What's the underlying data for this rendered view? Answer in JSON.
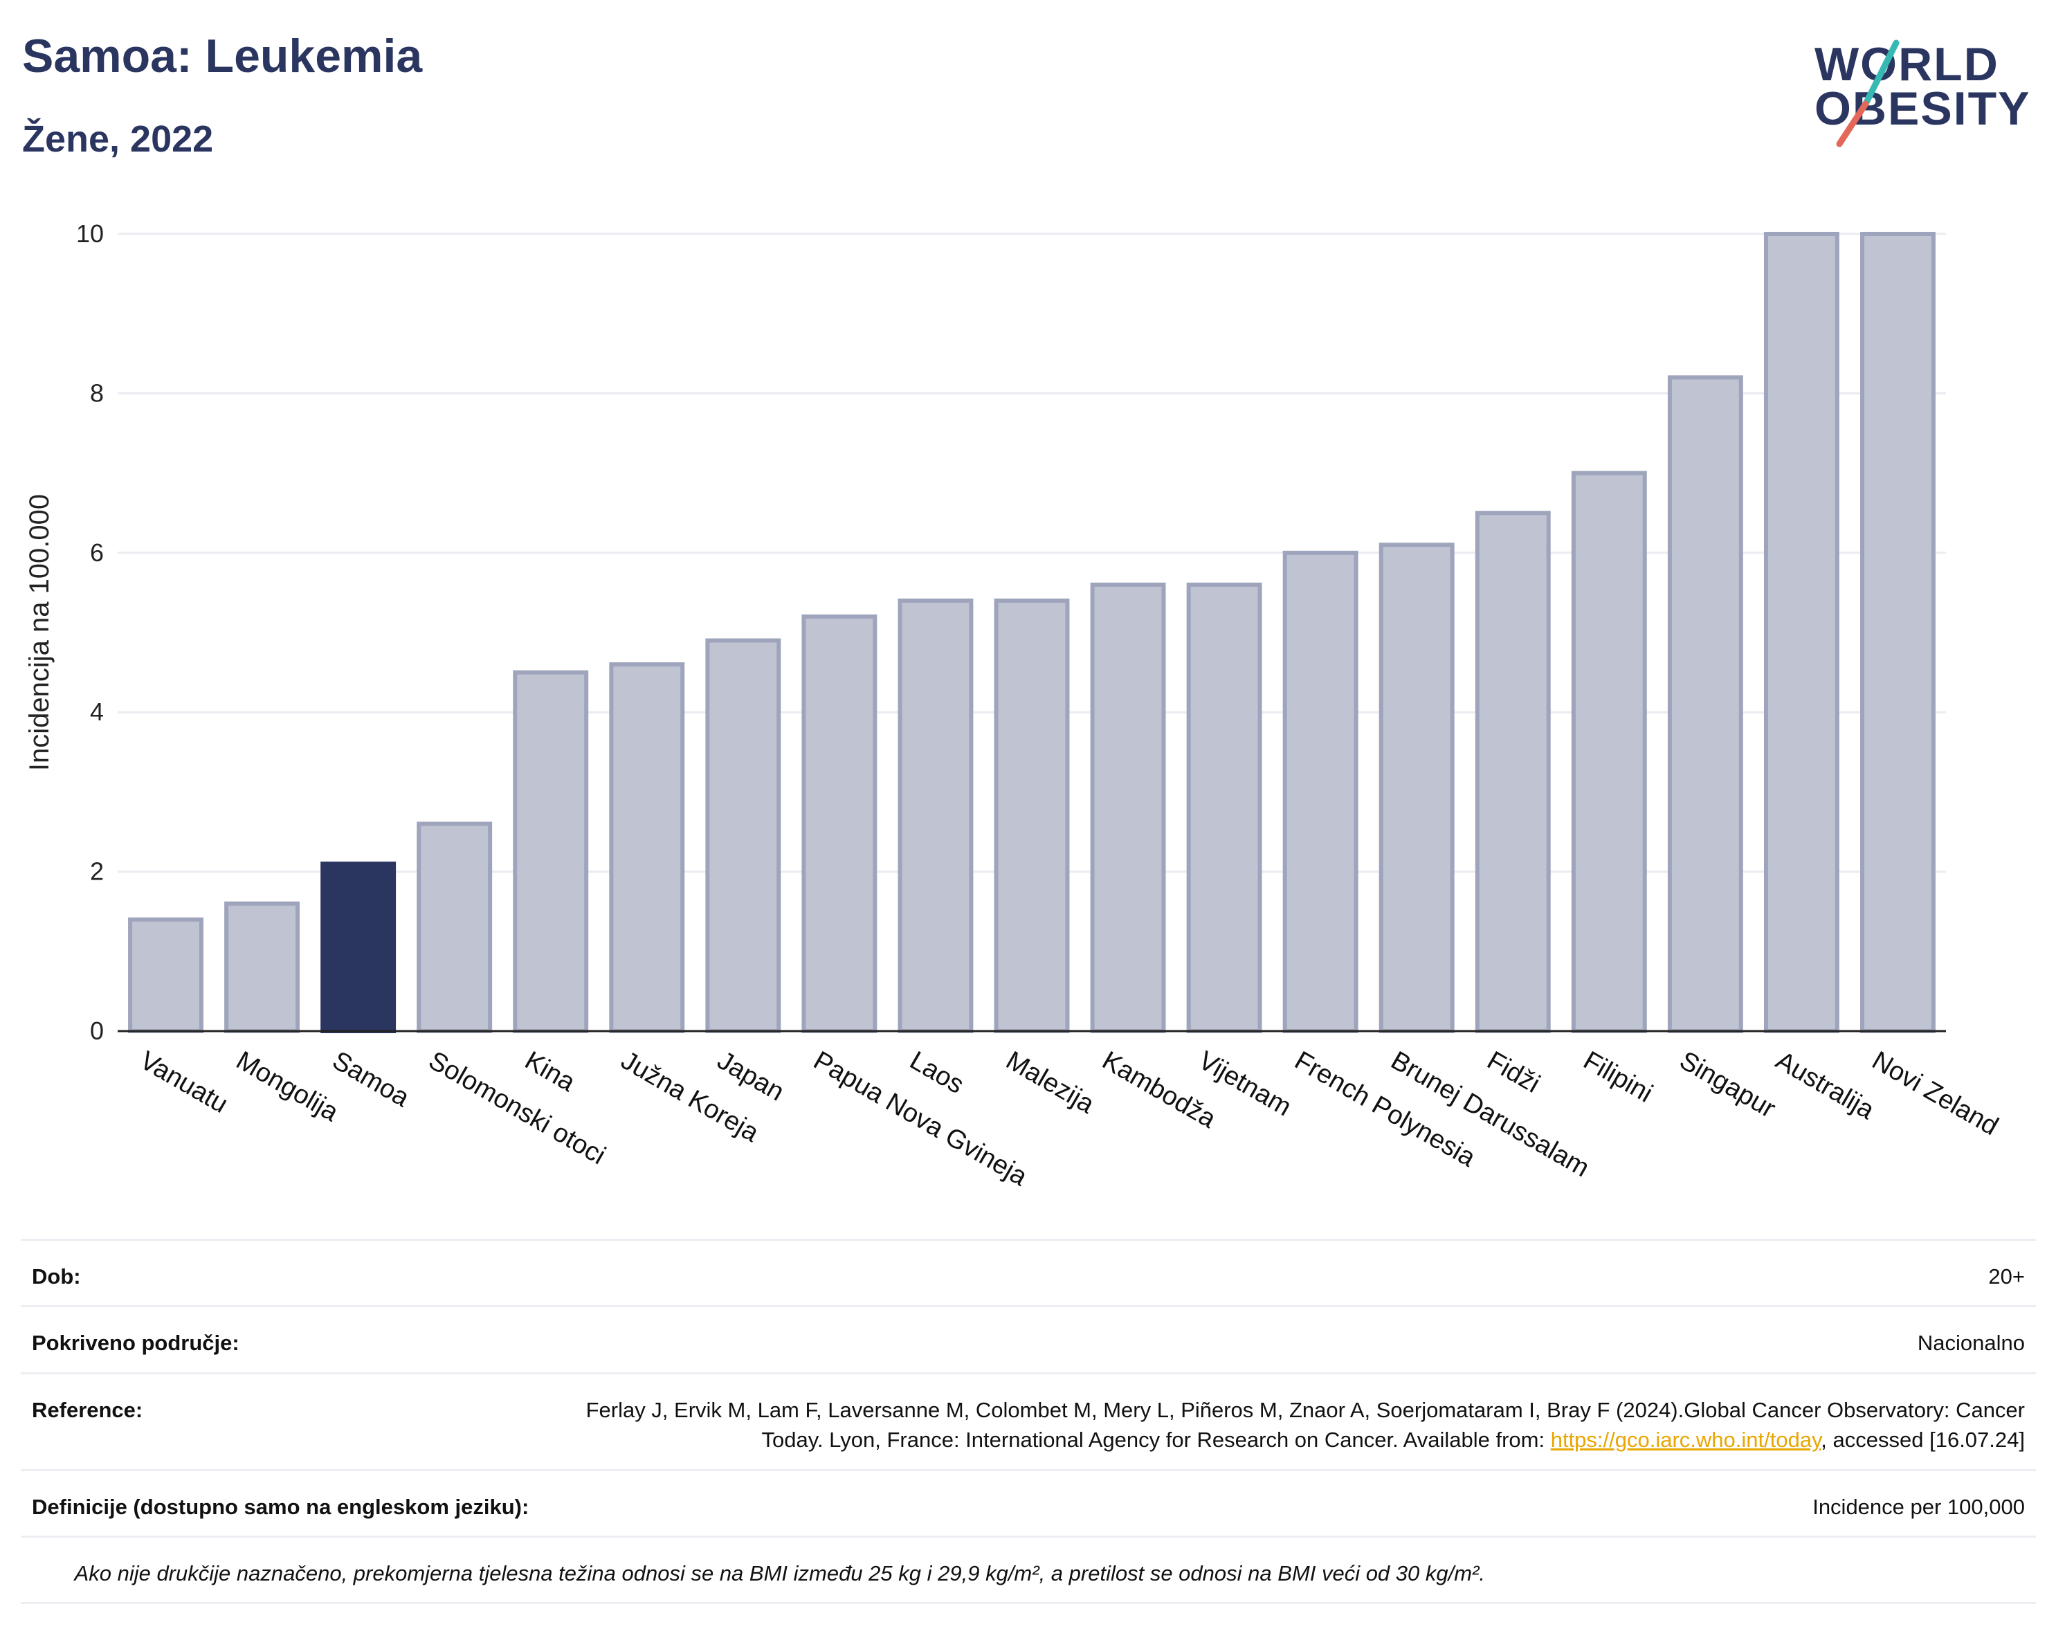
{
  "header": {
    "title": "Samoa: Leukemia",
    "subtitle": "Žene, 2022"
  },
  "logo": {
    "line1": "WORLD",
    "line2": "OBESITY"
  },
  "chart_data": {
    "type": "bar",
    "ylabel": "Incidencija na 100.000",
    "ylim": [
      0,
      10
    ],
    "yticks": [
      0,
      2,
      4,
      6,
      8,
      10
    ],
    "grid": true,
    "categories": [
      "Vanuatu",
      "Mongolija",
      "Samoa",
      "Solomonski otoci",
      "Kina",
      "Južna Koreja",
      "Japan",
      "Papua Nova Gvineja",
      "Laos",
      "Malezija",
      "Kambodža",
      "Vijetnam",
      "French Polynesia",
      "Brunej Darussalam",
      "Fidži",
      "Filipini",
      "Singapur",
      "Australija",
      "Novi Zeland"
    ],
    "values": [
      1.4,
      1.6,
      2.1,
      2.6,
      4.5,
      4.6,
      4.9,
      5.2,
      5.4,
      5.4,
      5.6,
      5.6,
      6.0,
      6.1,
      6.5,
      7.0,
      8.2,
      10.0,
      10.0
    ],
    "highlight": "Samoa",
    "colors": {
      "bar": "#bfc3d2",
      "bar_border": "#9ea4bb",
      "highlight": "#2a3560"
    }
  },
  "info": {
    "age_label": "Dob:",
    "age_value": "20+",
    "coverage_label": "Pokriveno područje:",
    "coverage_value": "Nacionalno",
    "reference_label": "Reference:",
    "reference_text": "Ferlay J, Ervik M, Lam F, Laversanne M, Colombet M, Mery L, Piñeros M, Znaor A, Soerjomataram I, Bray F (2024).Global Cancer Observatory: Cancer Today. Lyon, France: International Agency for Research on Cancer. Available from: ",
    "reference_link": "https://gco.iarc.who.int/today",
    "reference_suffix": ", accessed [16.07.24]",
    "definitions_label": "Definicije (dostupno samo na engleskom jeziku):",
    "definitions_value": "Incidence per 100,000",
    "note": "Ako nije drukčije naznačeno, prekomjerna tjelesna težina odnosi se na BMI između 25 kg i 29,9 kg/m², a pretilost se odnosi na BMI veći od 30 kg/m²."
  }
}
